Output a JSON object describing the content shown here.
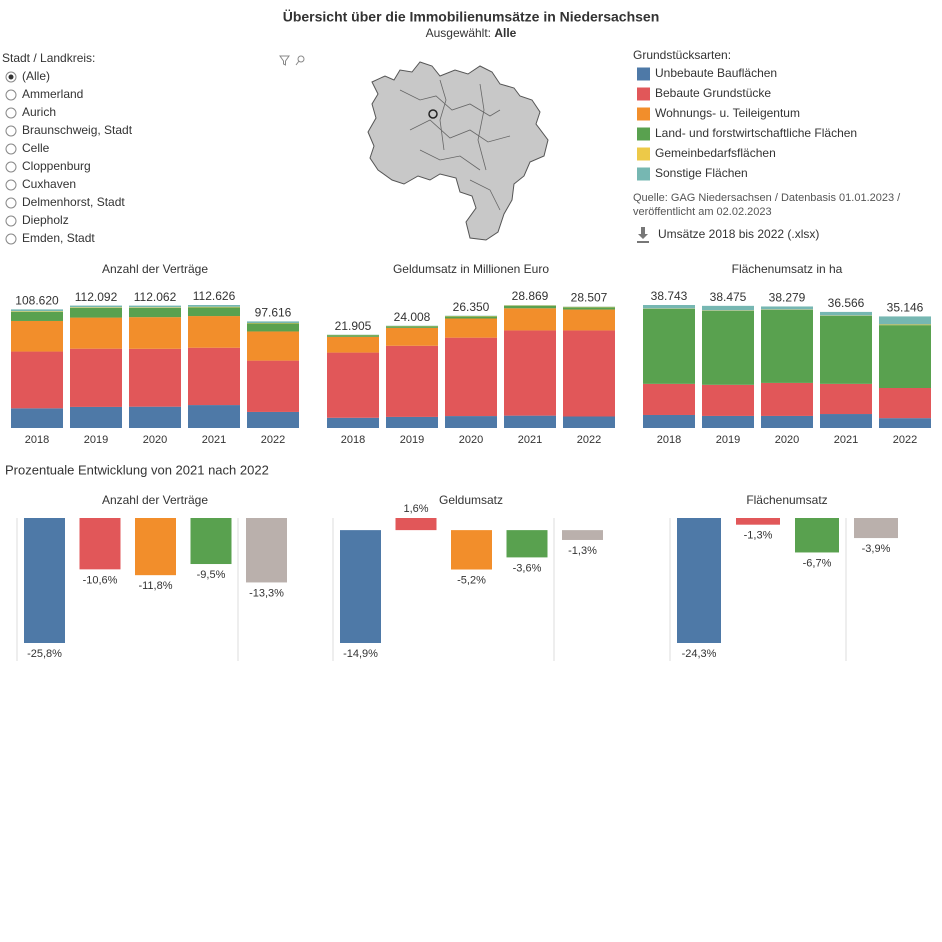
{
  "header": {
    "title": "Übersicht über die Immobilienumsätze in Niedersachsen",
    "selected_label": "Ausgewählt:",
    "selected_value": "Alle"
  },
  "filter": {
    "label": "Stadt / Landkreis:",
    "options": [
      "(Alle)",
      "Ammerland",
      "Aurich",
      "Braunschweig, Stadt",
      "Celle",
      "Cloppenburg",
      "Cuxhaven",
      "Delmenhorst, Stadt",
      "Diepholz",
      "Emden, Stadt"
    ],
    "selected": 0
  },
  "legend_title": "Grundstücksarten:",
  "source": [
    "Quelle: GAG Niedersachsen / Datenbasis 01.01.2023 /",
    "veröffentlicht am 02.02.2023"
  ],
  "download": "Umsätze 2018 bis 2022 (.xlsx)",
  "section_title": "Prozentuale Entwicklung von 2021 nach 2022",
  "chart_data": [
    {
      "type": "stacked_bar",
      "title": "Anzahl der Verträge",
      "categories": [
        "2018",
        "2019",
        "2020",
        "2021",
        "2022"
      ],
      "totals": [
        108620,
        112092,
        112062,
        112626,
        97616
      ],
      "value_labels": [
        "108.620",
        "112.092",
        "112.062",
        "112.626",
        "97.616"
      ],
      "series": [
        {
          "name": "Unbebaute Bauflächen",
          "color": "#4e79a7",
          "values": [
            18000,
            19300,
            19500,
            21000,
            14700
          ]
        },
        {
          "name": "Bebaute Grundstücke",
          "color": "#e15759",
          "values": [
            52000,
            53300,
            53000,
            52500,
            47000
          ]
        },
        {
          "name": "Wohnungs- u. Teileigentum",
          "color": "#f28e2b",
          "values": [
            28000,
            28500,
            29000,
            29000,
            26700
          ]
        },
        {
          "name": "Land- und forstwirtschaftliche Flächen",
          "color": "#59a14f",
          "values": [
            8500,
            9000,
            8500,
            8000,
            7300
          ]
        },
        {
          "name": "Gemeinbedarfsflächen",
          "color": "#edc948",
          "values": [
            500,
            500,
            500,
            500,
            400
          ]
        },
        {
          "name": "Sonstige Flächen",
          "color": "#76b7b2",
          "values": [
            1620,
            1492,
            1562,
            1626,
            1516
          ]
        }
      ]
    },
    {
      "type": "stacked_bar",
      "title": "Geldumsatz in Millionen Euro",
      "categories": [
        "2018",
        "2019",
        "2020",
        "2021",
        "2022"
      ],
      "totals": [
        21905,
        24008,
        26350,
        28869,
        28507
      ],
      "value_labels": [
        "21.905",
        "24.008",
        "26.350",
        "28.869",
        "28.507"
      ],
      "series": [
        {
          "name": "Unbebaute Bauflächen",
          "color": "#4e79a7",
          "values": [
            2400,
            2600,
            2800,
            2900,
            2700
          ]
        },
        {
          "name": "Bebaute Grundstücke",
          "color": "#e15759",
          "values": [
            15300,
            16700,
            18400,
            20000,
            20200
          ]
        },
        {
          "name": "Wohnungs- u. Teileigentum",
          "color": "#f28e2b",
          "values": [
            3700,
            4200,
            4500,
            5200,
            4900
          ]
        },
        {
          "name": "Land- und forstwirtschaftliche Flächen",
          "color": "#59a14f",
          "values": [
            400,
            400,
            500,
            600,
            550
          ]
        },
        {
          "name": "Gemeinbedarfsflächen",
          "color": "#edc948",
          "values": [
            50,
            50,
            80,
            100,
            100
          ]
        },
        {
          "name": "Sonstige Flächen",
          "color": "#76b7b2",
          "values": [
            55,
            58,
            70,
            69,
            57
          ]
        }
      ]
    },
    {
      "type": "stacked_bar",
      "title": "Flächenumsatz in ha",
      "categories": [
        "2018",
        "2019",
        "2020",
        "2021",
        "2022"
      ],
      "totals": [
        38743,
        38475,
        38279,
        36566,
        35146
      ],
      "value_labels": [
        "38.743",
        "38.475",
        "38.279",
        "36.566",
        "35.146"
      ],
      "series": [
        {
          "name": "Unbebaute Bauflächen",
          "color": "#4e79a7",
          "values": [
            4100,
            3800,
            3800,
            4400,
            3100
          ]
        },
        {
          "name": "Bebaute Grundstücke",
          "color": "#e15759",
          "values": [
            9800,
            9800,
            10400,
            9500,
            9500
          ]
        },
        {
          "name": "Wohnungs- u. Teileigentum",
          "color": "#f28e2b",
          "values": [
            0,
            0,
            0,
            0,
            0
          ]
        },
        {
          "name": "Land- und forstwirtschaftliche Flächen",
          "color": "#59a14f",
          "values": [
            23600,
            23300,
            23000,
            21400,
            19800
          ]
        },
        {
          "name": "Gemeinbedarfsflächen",
          "color": "#edc948",
          "values": [
            100,
            100,
            100,
            100,
            200
          ]
        },
        {
          "name": "Sonstige Flächen",
          "color": "#76b7b2",
          "values": [
            1143,
            1475,
            979,
            1166,
            2546
          ]
        }
      ]
    },
    {
      "type": "bar",
      "title": "Anzahl der Verträge",
      "categories": [
        null,
        null,
        null,
        null,
        null
      ],
      "values": [
        -25.8,
        -10.6,
        -11.8,
        -9.5,
        -13.3
      ],
      "value_labels": [
        "-25,8%",
        "-10,6%",
        "-11,8%",
        "-9,5%",
        "-13,3%"
      ],
      "colors": [
        "#4e79a7",
        "#e15759",
        "#f28e2b",
        "#59a14f",
        "#bab0ac"
      ]
    },
    {
      "type": "bar",
      "title": "Geldumsatz",
      "categories": [
        null,
        null,
        null,
        null,
        null
      ],
      "values": [
        -14.9,
        1.6,
        -5.2,
        -3.6,
        -1.3
      ],
      "value_labels": [
        "-14,9%",
        "1,6%",
        "-5,2%",
        "-3,6%",
        "-1,3%"
      ],
      "colors": [
        "#4e79a7",
        "#e15759",
        "#f28e2b",
        "#59a14f",
        "#bab0ac"
      ]
    },
    {
      "type": "bar",
      "title": "Flächenumsatz",
      "categories": [
        null,
        null,
        null,
        null
      ],
      "values": [
        -24.3,
        -1.3,
        -6.7,
        -3.9
      ],
      "value_labels": [
        "-24,3%",
        "-1,3%",
        "-6,7%",
        "-3,9%"
      ],
      "colors": [
        "#4e79a7",
        "#e15759",
        "#59a14f",
        "#bab0ac"
      ]
    }
  ]
}
